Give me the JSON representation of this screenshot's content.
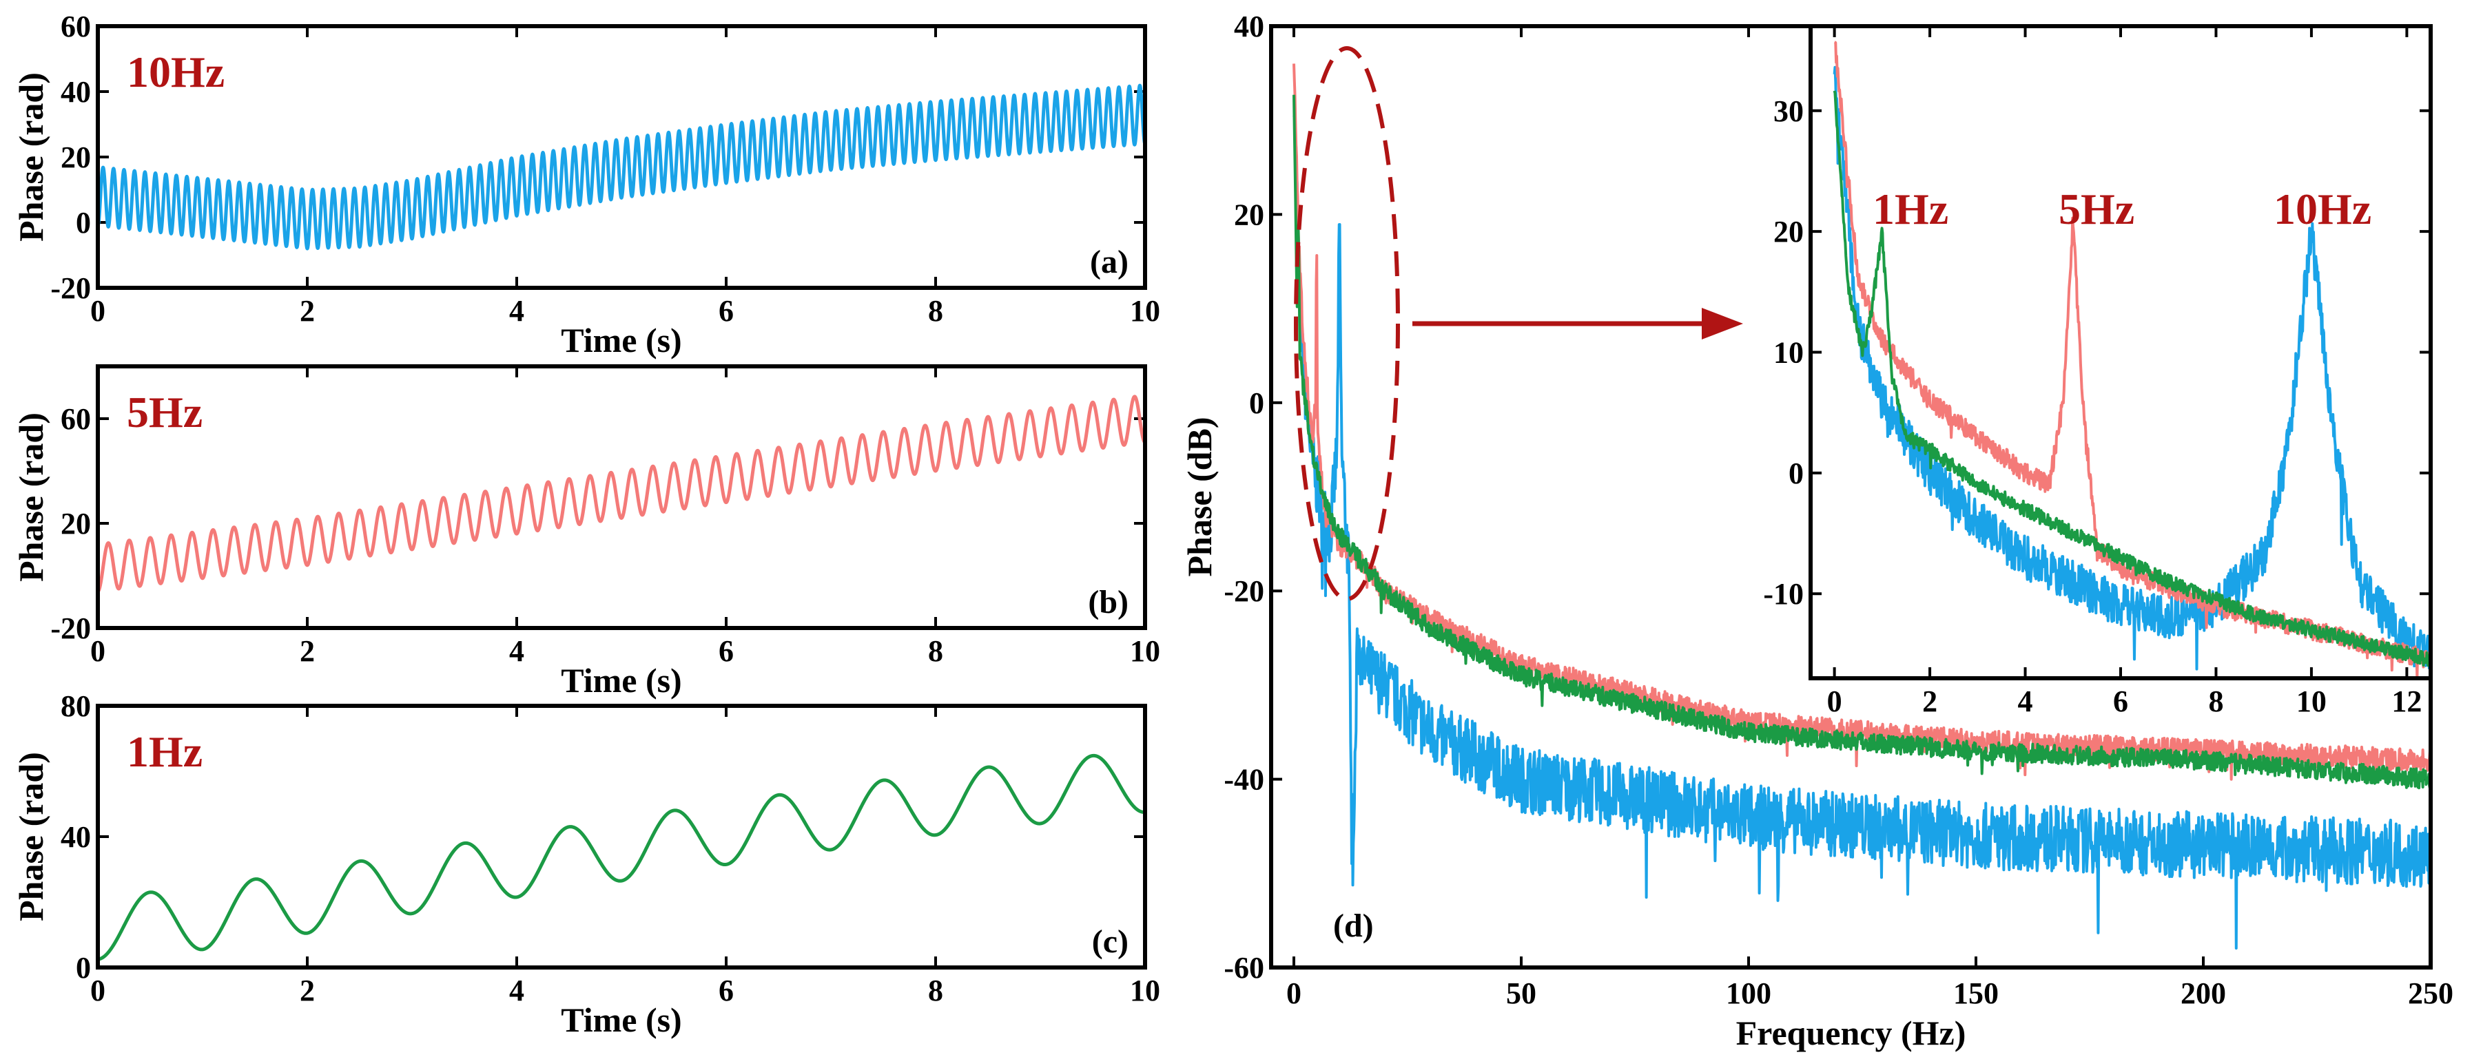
{
  "colors": {
    "blue": "#1aa3e8",
    "red": "#f47a78",
    "green": "#1b9b45",
    "label_red": "#b01414"
  },
  "chart_data": [
    {
      "id": "a",
      "type": "line",
      "panel_label": "(a)",
      "freq_label": "10Hz",
      "xlabel": "Time (s)",
      "ylabel": "Phase (rad)",
      "xlim": [
        0,
        10
      ],
      "ylim": [
        -20,
        60
      ],
      "xticks": [
        0,
        2,
        4,
        6,
        8,
        10
      ],
      "yticks": [
        -20,
        0,
        20,
        40,
        60
      ],
      "series": [
        {
          "color": "blue",
          "oscillation_freq_hz": 10,
          "oscillation_amplitude": 9,
          "baseline_x": [
            0,
            1,
            2,
            2.5,
            3,
            4,
            5,
            6,
            7,
            8,
            9,
            10
          ],
          "baseline_y": [
            8,
            4.5,
            1,
            1.5,
            4,
            11,
            16.5,
            21,
            25,
            28,
            30.5,
            33
          ]
        }
      ]
    },
    {
      "id": "b",
      "type": "line",
      "panel_label": "(b)",
      "freq_label": "5Hz",
      "xlabel": "Time (s)",
      "ylabel": "Phase (rad)",
      "xlim": [
        0,
        10
      ],
      "ylim": [
        -20,
        80
      ],
      "xticks": [
        0,
        2,
        4,
        6,
        8,
        10
      ],
      "yticks": [
        -20,
        20,
        60
      ],
      "series": [
        {
          "color": "red",
          "oscillation_freq_hz": 5,
          "oscillation_amplitude": 9,
          "baseline_x": [
            0,
            2,
            4,
            6,
            8,
            10
          ],
          "baseline_y": [
            3,
            13,
            25,
            37,
            49,
            60
          ]
        }
      ]
    },
    {
      "id": "c",
      "type": "line",
      "panel_label": "(c)",
      "freq_label": "1Hz",
      "xlabel": "Time (s)",
      "ylabel": "Phase (rad)",
      "xlim": [
        0,
        10
      ],
      "ylim": [
        0,
        80
      ],
      "xticks": [
        0,
        2,
        4,
        6,
        8,
        10
      ],
      "yticks": [
        0,
        40,
        80
      ],
      "series": [
        {
          "color": "green",
          "oscillation_freq_hz": 1,
          "oscillation_amplitude": 9.5,
          "baseline_x": [
            0,
            1,
            2,
            3,
            4,
            5,
            6,
            7,
            8,
            9,
            10
          ],
          "baseline_y": [
            12,
            15,
            20,
            26,
            31,
            36,
            41,
            45.5,
            50,
            53.5,
            57
          ]
        }
      ]
    },
    {
      "id": "d",
      "type": "line",
      "panel_label": "(d)",
      "xlabel": "Frequency (Hz)",
      "ylabel": "Phase (dB)",
      "xlim": [
        -5,
        250
      ],
      "ylim": [
        -60,
        40
      ],
      "xticks": [
        0,
        50,
        100,
        150,
        200,
        250
      ],
      "yticks": [
        -60,
        -40,
        -20,
        0,
        20,
        40
      ],
      "series": [
        {
          "color": "blue",
          "noise": 3.5,
          "envelope_x": [
            0,
            1,
            2,
            4,
            6,
            8,
            9.5,
            10,
            10.5,
            12,
            13,
            14,
            15,
            20,
            30,
            50,
            75,
            100,
            150,
            200,
            250
          ],
          "envelope_y": [
            34,
            16,
            4,
            -6,
            -11,
            -14,
            -5,
            20,
            -5,
            -17,
            -50,
            -25,
            -28,
            -30,
            -35,
            -40,
            -42,
            -44,
            -46,
            -47,
            -48
          ]
        },
        {
          "color": "red",
          "noise": 1.2,
          "envelope_x": [
            0,
            1,
            2,
            4,
            4.8,
            5,
            5.2,
            7,
            10,
            15,
            20,
            30,
            50,
            75,
            100,
            150,
            200,
            250
          ],
          "envelope_y": [
            36,
            18,
            7,
            -4,
            0,
            20,
            -4,
            -12,
            -15,
            -17,
            -20,
            -23,
            -28,
            -31,
            -34,
            -36,
            -37,
            -38
          ]
        },
        {
          "color": "green",
          "noise": 1.0,
          "envelope_x": [
            0,
            0.7,
            1,
            1.3,
            2,
            4,
            7,
            10,
            15,
            20,
            30,
            50,
            75,
            100,
            150,
            200,
            250
          ],
          "envelope_y": [
            32,
            10,
            20,
            5,
            2,
            -5,
            -11,
            -14,
            -17,
            -20,
            -24,
            -29,
            -32,
            -35,
            -37,
            -38,
            -40
          ]
        }
      ],
      "inset": {
        "xlim": [
          -0.5,
          12.5
        ],
        "ylim": [
          -17,
          37
        ],
        "xticks": [
          0,
          2,
          4,
          6,
          8,
          10,
          12
        ],
        "yticks": [
          -10,
          0,
          10,
          20,
          30
        ],
        "freq_labels": [
          "1Hz",
          "5Hz",
          "10Hz"
        ],
        "series": [
          {
            "color": "blue",
            "noise": 1.8,
            "envelope_x": [
              0,
              0.5,
              1,
              2,
              3,
              4,
              5,
              6,
              7,
              8,
              9,
              9.5,
              10,
              10.5,
              11,
              12,
              12.5
            ],
            "envelope_y": [
              33,
              12,
              6,
              0,
              -4,
              -7,
              -9,
              -11,
              -12,
              -11,
              -7,
              2,
              20,
              2,
              -9,
              -14,
              -15
            ]
          },
          {
            "color": "red",
            "noise": 0.8,
            "envelope_x": [
              0,
              0.5,
              1,
              2,
              3,
              4,
              4.5,
              4.8,
              5,
              5.2,
              5.5,
              6,
              7,
              8,
              9,
              10,
              11,
              12,
              12.5
            ],
            "envelope_y": [
              36,
              16,
              11,
              6,
              3,
              0,
              -1,
              6,
              21,
              6,
              -6,
              -8,
              -9.5,
              -11,
              -12,
              -13,
              -14,
              -15,
              -15.5
            ]
          },
          {
            "color": "green",
            "noise": 0.6,
            "envelope_x": [
              0,
              0.3,
              0.6,
              0.8,
              1,
              1.2,
              1.5,
              2,
              3,
              4,
              5,
              6,
              7,
              8,
              9,
              10,
              11,
              12,
              12.5
            ],
            "envelope_y": [
              32,
              15,
              10,
              14,
              20,
              8,
              3,
              2,
              -1,
              -3,
              -5,
              -7,
              -9,
              -10.5,
              -12,
              -13,
              -14,
              -15,
              -15.5
            ]
          }
        ]
      }
    }
  ]
}
